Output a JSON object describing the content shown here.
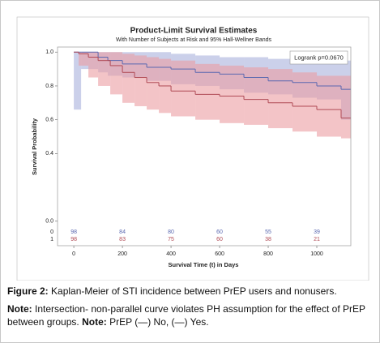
{
  "chart_data": {
    "type": "survival",
    "title": "Product-Limit Survival Estimates",
    "subtitle": "With Number of Subjects at Risk and 95% Hall-Wellner Bands",
    "annotation": "Logrank p=0.0670",
    "xlabel": "Survival Time (t) in Days",
    "ylabel": "Survival Probability",
    "xlim": [
      -67,
      1140
    ],
    "ylim": [
      -0.145,
      1.03
    ],
    "xticks": [
      0,
      200,
      400,
      600,
      800,
      1000
    ],
    "yticks": [
      {
        "value": 0,
        "label": "0.0"
      },
      0.4,
      0.6,
      0.8,
      {
        "value": 1,
        "label": "1.0"
      }
    ],
    "series": [
      {
        "name": "No",
        "color": "#5a68b0",
        "band_color": "#a9b0dc",
        "x": [
          0,
          30,
          100,
          140,
          200,
          300,
          400,
          500,
          600,
          700,
          800,
          900,
          1000,
          1100,
          1140
        ],
        "values": [
          1,
          1,
          0.97,
          0.95,
          0.93,
          0.91,
          0.9,
          0.88,
          0.87,
          0.85,
          0.83,
          0.82,
          0.8,
          0.78,
          0.78
        ],
        "lower": [
          0.66,
          0.9,
          0.88,
          0.86,
          0.85,
          0.83,
          0.81,
          0.8,
          0.78,
          0.76,
          0.75,
          0.73,
          0.72,
          0.6,
          0.6
        ],
        "upper": [
          1,
          1,
          1,
          1,
          1,
          1,
          0.99,
          0.98,
          0.97,
          0.97,
          0.96,
          0.96,
          0.95,
          0.95,
          0.95
        ]
      },
      {
        "name": "Yes",
        "color": "#b04a55",
        "band_color": "#eb9da2",
        "x": [
          0,
          20,
          60,
          100,
          150,
          200,
          250,
          300,
          350,
          400,
          500,
          600,
          700,
          800,
          900,
          1000,
          1100,
          1140
        ],
        "values": [
          1,
          0.99,
          0.97,
          0.95,
          0.92,
          0.88,
          0.85,
          0.82,
          0.8,
          0.77,
          0.75,
          0.74,
          0.72,
          0.7,
          0.68,
          0.66,
          0.61,
          0.61
        ],
        "lower": [
          1,
          0.92,
          0.85,
          0.8,
          0.75,
          0.7,
          0.68,
          0.66,
          0.64,
          0.62,
          0.6,
          0.58,
          0.57,
          0.55,
          0.53,
          0.5,
          0.49,
          0.49
        ],
        "upper": [
          1,
          1,
          1,
          1,
          1,
          0.99,
          0.98,
          0.97,
          0.96,
          0.95,
          0.93,
          0.92,
          0.91,
          0.9,
          0.88,
          0.86,
          0.86,
          0.86
        ]
      }
    ],
    "at_risk": {
      "groups": [
        "0",
        "1"
      ],
      "counts": [
        [
          "98",
          "84",
          "80",
          "60",
          "55",
          "39"
        ],
        [
          "98",
          "83",
          "75",
          "60",
          "38",
          "21"
        ]
      ]
    }
  },
  "caption": {
    "label": "Figure 2:",
    "text": "Kaplan-Meier of STI incidence between PrEP users and nonusers."
  },
  "note": {
    "label": "Note:",
    "text": "Intersection- non-parallel curve violates PH assumption for the effect of PrEP between groups.",
    "label2": "Note:",
    "text2": "PrEP (—) No, (—) Yes."
  }
}
